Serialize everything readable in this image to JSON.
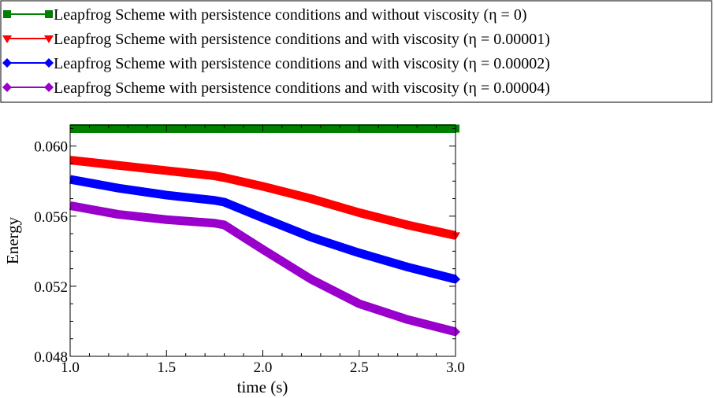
{
  "chart_data": {
    "type": "line",
    "title": "",
    "xlabel": "time (s)",
    "ylabel": "Energy",
    "xlim": [
      1.0,
      3.0
    ],
    "ylim": [
      0.048,
      0.0612
    ],
    "xticks": [
      1.0,
      1.5,
      2.0,
      2.5,
      3.0
    ],
    "xtick_labels": [
      "1.0",
      "1.5",
      "2.0",
      "2.5",
      "3.0"
    ],
    "yticks": [
      0.048,
      0.052,
      0.056,
      0.06
    ],
    "ytick_labels": [
      "0.048",
      "0.052",
      "0.056",
      "0.060"
    ],
    "grid": false,
    "legend_position": "top",
    "series": [
      {
        "name": "Leapfrog Scheme with persistence conditions and without viscosity (η = 0)",
        "color": "#008000",
        "marker": "square",
        "x": [
          1.0,
          1.5,
          2.0,
          2.5,
          3.0
        ],
        "y": [
          0.061,
          0.061,
          0.061,
          0.061,
          0.061
        ]
      },
      {
        "name": "Leapfrog Scheme with persistence conditions and with viscosity (η = 0.00001)",
        "color": "#ff0000",
        "marker": "triangle-down",
        "x": [
          1.0,
          1.25,
          1.5,
          1.75,
          1.8,
          2.0,
          2.25,
          2.5,
          2.75,
          3.0
        ],
        "y": [
          0.0592,
          0.0589,
          0.0586,
          0.0583,
          0.0582,
          0.0577,
          0.057,
          0.0562,
          0.0555,
          0.0549
        ]
      },
      {
        "name": "Leapfrog Scheme with persistence conditions and with viscosity (η = 0.00002)",
        "color": "#0000ff",
        "marker": "diamond",
        "x": [
          1.0,
          1.25,
          1.5,
          1.75,
          1.8,
          2.0,
          2.25,
          2.5,
          2.75,
          3.0
        ],
        "y": [
          0.0581,
          0.0576,
          0.0572,
          0.0569,
          0.0568,
          0.0559,
          0.0548,
          0.0539,
          0.0531,
          0.0524
        ]
      },
      {
        "name": "Leapfrog Scheme with persistence conditions and with viscosity (η = 0.00004)",
        "color": "#9900cc",
        "marker": "diamond",
        "x": [
          1.0,
          1.25,
          1.5,
          1.75,
          1.8,
          2.0,
          2.25,
          2.5,
          2.75,
          3.0
        ],
        "y": [
          0.0566,
          0.0561,
          0.0558,
          0.0556,
          0.0555,
          0.0541,
          0.0524,
          0.051,
          0.0501,
          0.0494
        ]
      }
    ]
  }
}
